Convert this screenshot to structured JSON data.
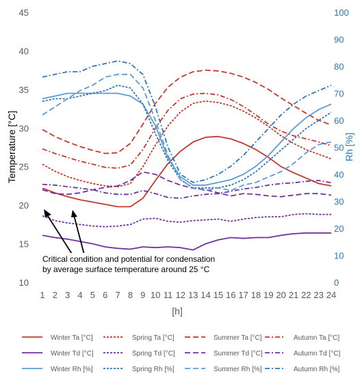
{
  "chart_data": {
    "type": "line",
    "x": [
      1,
      2,
      3,
      4,
      5,
      6,
      7,
      8,
      9,
      10,
      11,
      12,
      13,
      14,
      15,
      16,
      17,
      18,
      19,
      20,
      21,
      22,
      23,
      24
    ],
    "xlabel": "[h]",
    "ylabel_left": "Temperature [°C]",
    "ylabel_right": "Rh [%]",
    "ylim_left": [
      10,
      45
    ],
    "ylim_right": [
      0,
      100
    ],
    "yticks_left": [
      10,
      15,
      20,
      25,
      30,
      35,
      40,
      45
    ],
    "yticks_right": [
      0,
      10,
      20,
      30,
      40,
      50,
      60,
      70,
      80,
      90,
      100
    ],
    "annotation": {
      "lines": [
        "Critical condition and potential for condensation",
        "by average surface temperature around 25 °C"
      ]
    },
    "series": [
      {
        "name": "Winter Ta [°C]",
        "axis": "left",
        "color": "#c0392b",
        "dash": "solid",
        "values": [
          22.2,
          21.6,
          21.1,
          20.7,
          20.4,
          20.1,
          19.8,
          19.8,
          20.9,
          23.2,
          25.4,
          27.0,
          28.2,
          28.8,
          28.9,
          28.6,
          28.0,
          27.2,
          26.2,
          25.0,
          24.2,
          23.5,
          22.8,
          22.5
        ]
      },
      {
        "name": "Spring Ta [°C]",
        "axis": "left",
        "color": "#c0392b",
        "dash": "short",
        "values": [
          25.3,
          24.4,
          23.7,
          23.2,
          22.8,
          22.5,
          22.4,
          22.8,
          25.0,
          27.8,
          30.3,
          32.1,
          33.2,
          33.5,
          33.3,
          32.9,
          32.2,
          31.3,
          30.2,
          29.0,
          28.0,
          27.2,
          26.6,
          26.0
        ]
      },
      {
        "name": "Summer Ta [°C]",
        "axis": "left",
        "color": "#c0392b",
        "dash": "long",
        "values": [
          29.8,
          28.9,
          28.2,
          27.6,
          27.1,
          26.7,
          26.8,
          28.0,
          30.5,
          33.2,
          35.3,
          36.6,
          37.3,
          37.5,
          37.4,
          37.1,
          36.6,
          35.9,
          35.0,
          33.9,
          32.9,
          31.9,
          31.0,
          30.4
        ]
      },
      {
        "name": "Autumn Ta [°C]",
        "axis": "left",
        "color": "#c0392b",
        "dash": "dashdot",
        "values": [
          27.3,
          26.7,
          26.2,
          25.7,
          25.3,
          24.9,
          24.8,
          25.2,
          27.2,
          30.0,
          32.3,
          33.8,
          34.4,
          34.5,
          34.3,
          33.7,
          32.8,
          31.7,
          30.5,
          29.6,
          29.0,
          28.6,
          28.2,
          27.7
        ]
      },
      {
        "name": "Winter Td [°C]",
        "axis": "left",
        "color": "#7030a0",
        "dash": "solid",
        "values": [
          16.1,
          15.8,
          15.6,
          15.3,
          15.0,
          14.6,
          14.4,
          14.3,
          14.6,
          14.5,
          14.6,
          14.5,
          14.2,
          15.0,
          15.5,
          15.8,
          15.7,
          15.8,
          15.8,
          16.1,
          16.3,
          16.4,
          16.4,
          16.4
        ]
      },
      {
        "name": "Spring Td [°C]",
        "axis": "left",
        "color": "#7030a0",
        "dash": "short",
        "values": [
          18.6,
          18.0,
          17.7,
          17.5,
          17.3,
          17.2,
          17.3,
          17.5,
          18.2,
          18.3,
          17.9,
          17.8,
          18.0,
          18.1,
          18.2,
          17.9,
          18.2,
          18.4,
          18.5,
          18.5,
          18.8,
          18.9,
          18.8,
          18.8
        ]
      },
      {
        "name": "Summer Td [°C]",
        "axis": "left",
        "color": "#7030a0",
        "dash": "long",
        "values": [
          22.0,
          21.5,
          21.4,
          21.6,
          22.0,
          22.3,
          22.5,
          23.2,
          24.3,
          24.0,
          23.2,
          22.6,
          22.2,
          22.0,
          21.6,
          21.2,
          21.5,
          21.4,
          21.2,
          21.1,
          21.3,
          21.5,
          21.5,
          21.3
        ]
      },
      {
        "name": "Autumn Td [°C]",
        "axis": "left",
        "color": "#7030a0",
        "dash": "dashdot",
        "values": [
          22.7,
          22.6,
          22.4,
          22.2,
          22.0,
          21.6,
          21.4,
          21.4,
          21.9,
          21.5,
          21.0,
          20.9,
          21.2,
          21.4,
          21.5,
          21.8,
          22.1,
          22.3,
          22.6,
          22.8,
          22.9,
          23.1,
          23.2,
          22.9
        ]
      },
      {
        "name": "Winter Rh [%]",
        "axis": "right",
        "color": "#5b9bd5",
        "dash": "solid",
        "values": [
          68,
          69,
          70,
          70,
          70,
          70,
          70,
          69,
          66,
          58,
          46,
          39,
          36,
          36,
          37,
          38,
          40,
          43,
          47,
          52,
          57,
          61,
          64,
          66
        ]
      },
      {
        "name": "Spring Rh [%]",
        "axis": "right",
        "color": "#2e75b6",
        "dash": "short",
        "values": [
          67,
          68,
          68,
          69,
          70,
          71,
          73,
          72,
          66,
          55,
          45,
          38,
          35,
          35,
          35,
          36,
          38,
          41,
          45,
          49,
          53,
          57,
          60,
          63
        ]
      },
      {
        "name": "Summer Rh [%]",
        "axis": "right",
        "color": "#5b9bd5",
        "dash": "long",
        "values": [
          62,
          65,
          68,
          71,
          73,
          76,
          77,
          77,
          72,
          60,
          47,
          38,
          35,
          34,
          35,
          34,
          36,
          37,
          39,
          41,
          44,
          48,
          51,
          52
        ]
      },
      {
        "name": "Autumn Rh [%]",
        "axis": "right",
        "color": "#2e75b6",
        "dash": "dashdot",
        "values": [
          76,
          77,
          78,
          78,
          80,
          81,
          82,
          81,
          77,
          65,
          50,
          40,
          37,
          38,
          40,
          43,
          47,
          52,
          57,
          62,
          66,
          69,
          71,
          73
        ]
      }
    ]
  }
}
